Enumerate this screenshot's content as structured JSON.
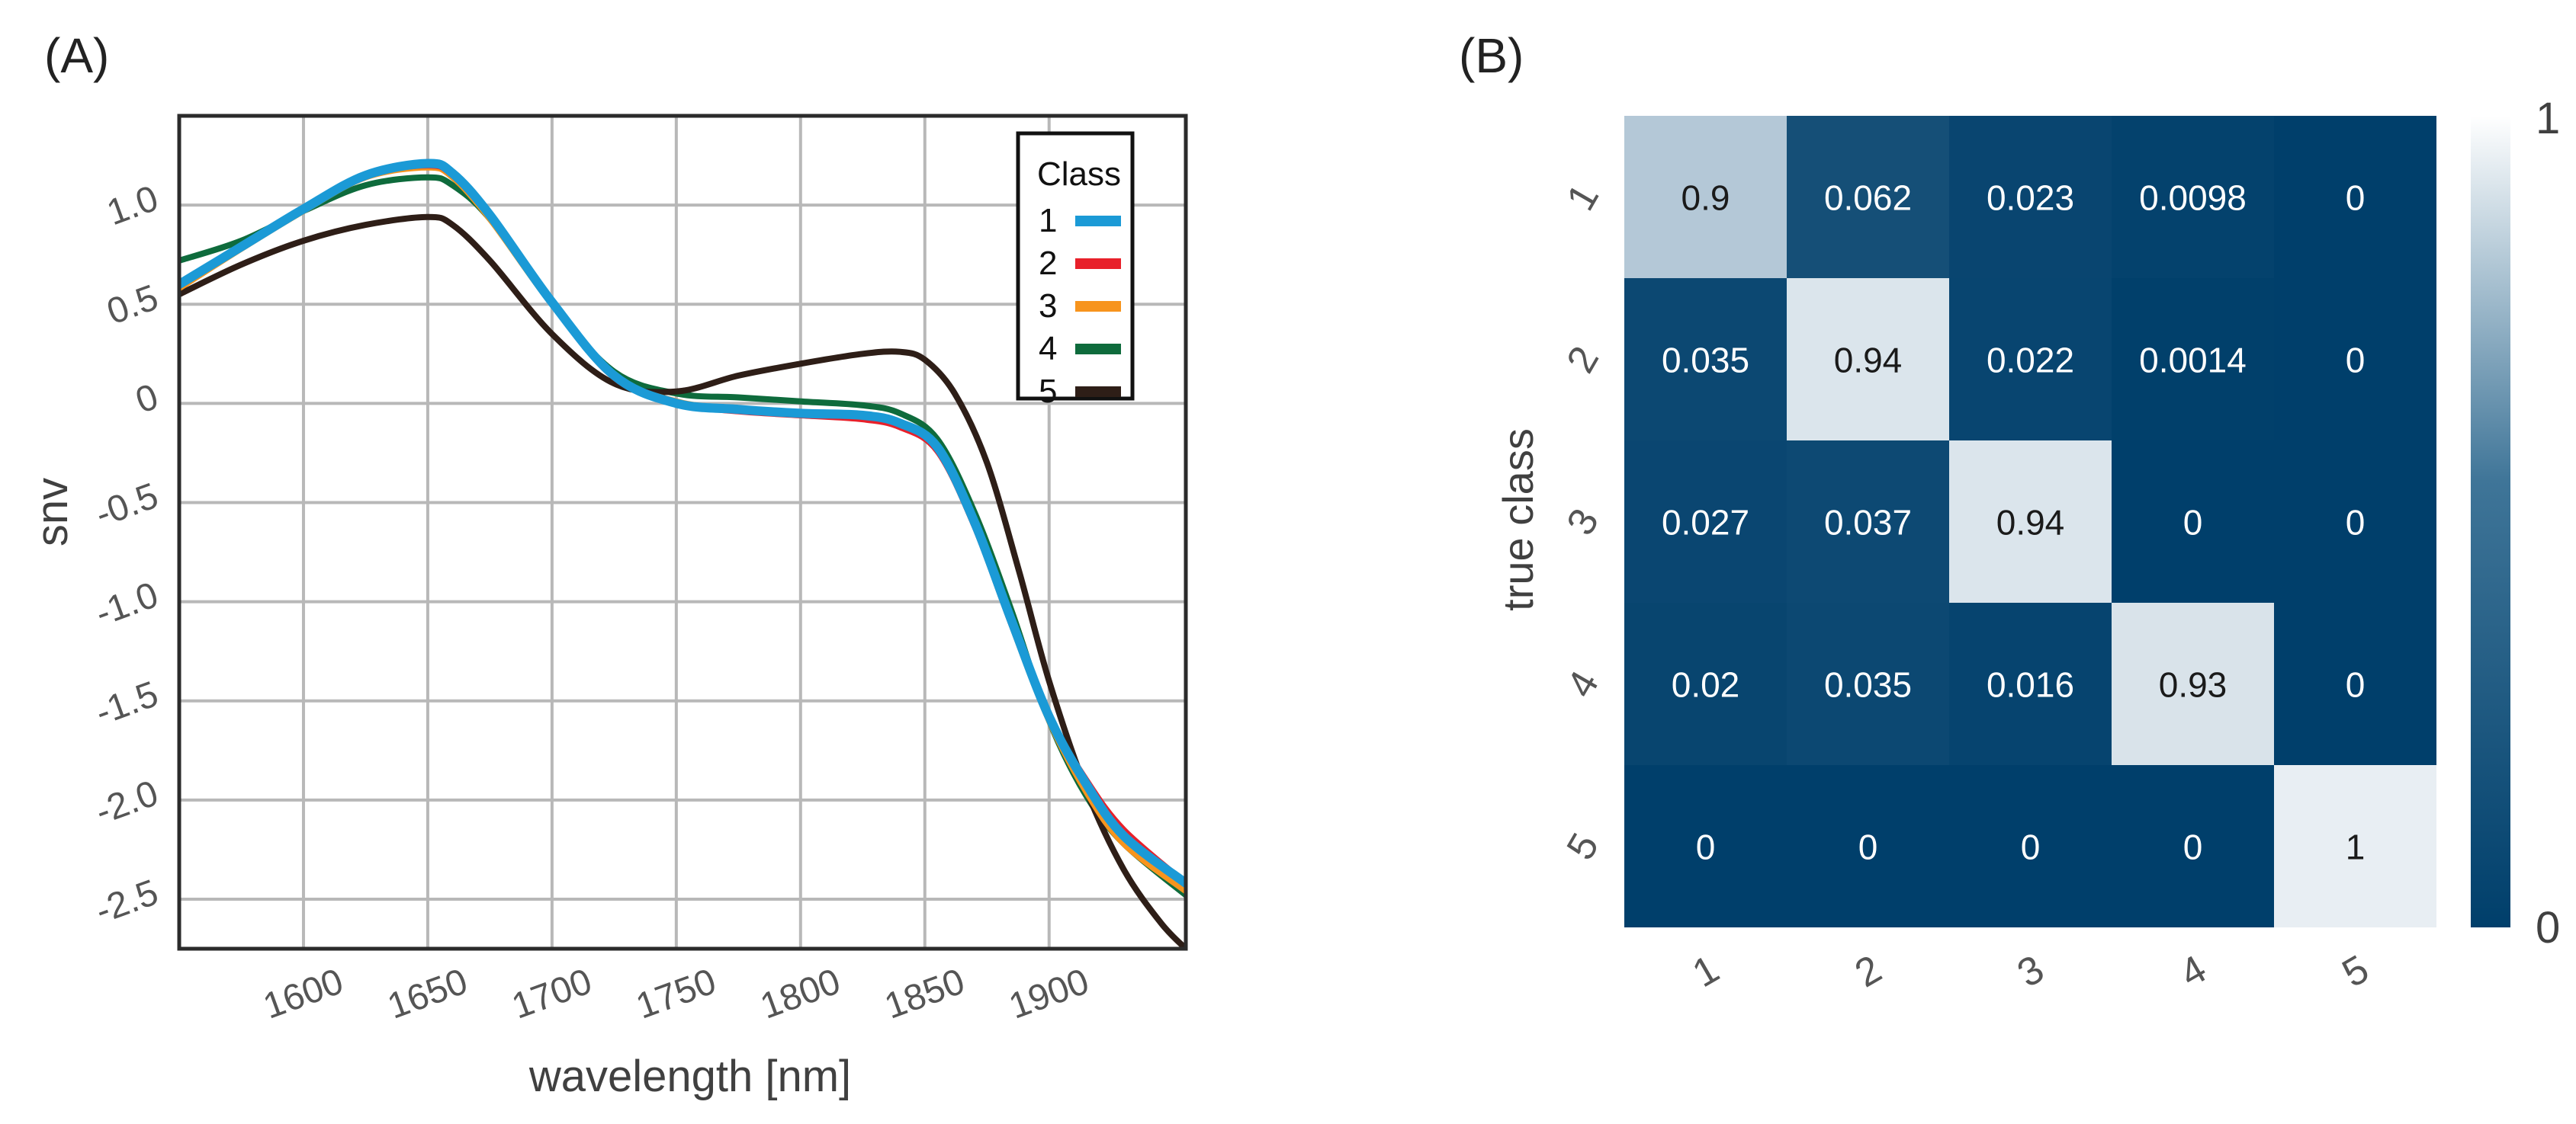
{
  "panels": {
    "a_label": "(A)",
    "b_label": "(B)"
  },
  "chart_data": [
    {
      "type": "line",
      "title": "",
      "xlabel": "wavelength [nm]",
      "ylabel": "snv",
      "xlim": [
        1550,
        1955
      ],
      "ylim": [
        -2.75,
        1.45
      ],
      "grid": true,
      "xticks": [
        1600,
        1650,
        1700,
        1750,
        1800,
        1850,
        1900
      ],
      "xtick_labels": [
        "1600",
        "1650",
        "1700",
        "1750",
        "1800",
        "1850",
        "1900"
      ],
      "yticks": [
        1.0,
        0.5,
        0,
        -0.5,
        -1.0,
        -1.5,
        -2.0,
        -2.5
      ],
      "ytick_labels": [
        "1.0",
        "0.5",
        "0",
        "-0.5",
        "-1.0",
        "-1.5",
        "-2.0",
        "-2.5"
      ],
      "legend": {
        "title": "Class",
        "position": "top-right"
      },
      "series": [
        {
          "name": "4",
          "color": "#0e6b3c",
          "x": [
            1550,
            1575,
            1600,
            1625,
            1650,
            1660,
            1675,
            1700,
            1725,
            1750,
            1775,
            1800,
            1825,
            1840,
            1855,
            1870,
            1885,
            1900,
            1915,
            1930,
            1955
          ],
          "y": [
            0.72,
            0.82,
            0.97,
            1.1,
            1.14,
            1.1,
            0.93,
            0.5,
            0.16,
            0.05,
            0.03,
            0.01,
            -0.01,
            -0.05,
            -0.18,
            -0.55,
            -1.05,
            -1.6,
            -1.98,
            -2.22,
            -2.48
          ]
        },
        {
          "name": "5",
          "color": "#2e1e17",
          "x": [
            1550,
            1575,
            1600,
            1625,
            1650,
            1660,
            1675,
            1700,
            1725,
            1750,
            1775,
            1800,
            1825,
            1840,
            1850,
            1862,
            1875,
            1888,
            1900,
            1915,
            1930,
            1945,
            1955
          ],
          "y": [
            0.55,
            0.7,
            0.82,
            0.9,
            0.94,
            0.9,
            0.72,
            0.35,
            0.1,
            0.06,
            0.14,
            0.2,
            0.25,
            0.26,
            0.22,
            0.05,
            -0.3,
            -0.85,
            -1.4,
            -1.95,
            -2.35,
            -2.62,
            -2.75
          ]
        },
        {
          "name": "3",
          "color": "#f7941d",
          "x": [
            1550,
            1575,
            1600,
            1625,
            1650,
            1660,
            1675,
            1700,
            1725,
            1750,
            1775,
            1800,
            1825,
            1840,
            1855,
            1870,
            1885,
            1900,
            1915,
            1930,
            1955
          ],
          "y": [
            0.58,
            0.78,
            0.97,
            1.14,
            1.19,
            1.14,
            0.93,
            0.5,
            0.14,
            0.01,
            -0.03,
            -0.05,
            -0.06,
            -0.1,
            -0.22,
            -0.6,
            -1.12,
            -1.6,
            -1.96,
            -2.22,
            -2.46
          ]
        },
        {
          "name": "2",
          "color": "#e8202a",
          "x": [
            1550,
            1575,
            1600,
            1625,
            1650,
            1660,
            1675,
            1700,
            1725,
            1750,
            1775,
            1800,
            1825,
            1840,
            1855,
            1870,
            1885,
            1900,
            1915,
            1930,
            1955
          ],
          "y": [
            0.6,
            0.79,
            0.98,
            1.15,
            1.2,
            1.15,
            0.94,
            0.5,
            0.13,
            0.0,
            -0.04,
            -0.06,
            -0.08,
            -0.12,
            -0.24,
            -0.62,
            -1.12,
            -1.58,
            -1.9,
            -2.15,
            -2.42
          ]
        },
        {
          "name": "1",
          "color": "#1b9ad6",
          "x": [
            1550,
            1575,
            1600,
            1625,
            1650,
            1660,
            1675,
            1700,
            1725,
            1750,
            1775,
            1800,
            1825,
            1840,
            1855,
            1870,
            1885,
            1900,
            1915,
            1930,
            1955
          ],
          "y": [
            0.6,
            0.79,
            0.98,
            1.15,
            1.21,
            1.16,
            0.95,
            0.51,
            0.14,
            0.0,
            -0.03,
            -0.05,
            -0.06,
            -0.1,
            -0.22,
            -0.6,
            -1.1,
            -1.58,
            -1.92,
            -2.18,
            -2.42
          ]
        }
      ]
    },
    {
      "type": "heatmap",
      "title": "",
      "xlabel": "",
      "ylabel": "true class",
      "x_categories": [
        "1",
        "2",
        "3",
        "4",
        "5"
      ],
      "y_categories": [
        "1",
        "2",
        "3",
        "4",
        "5"
      ],
      "matrix": [
        [
          "0.9",
          "0.062",
          "0.023",
          "0.0098",
          "0"
        ],
        [
          "0.035",
          "0.94",
          "0.022",
          "0.0014",
          "0"
        ],
        [
          "0.027",
          "0.037",
          "0.94",
          "0",
          "0"
        ],
        [
          "0.02",
          "0.035",
          "0.016",
          "0.93",
          "0"
        ],
        [
          "0",
          "0",
          "0",
          "0",
          "1"
        ]
      ],
      "colorbar": {
        "min": 0,
        "max": 1,
        "min_label": "0",
        "max_label": "1",
        "low_color": "#003f6b",
        "high_color": "#ffffff"
      }
    }
  ]
}
